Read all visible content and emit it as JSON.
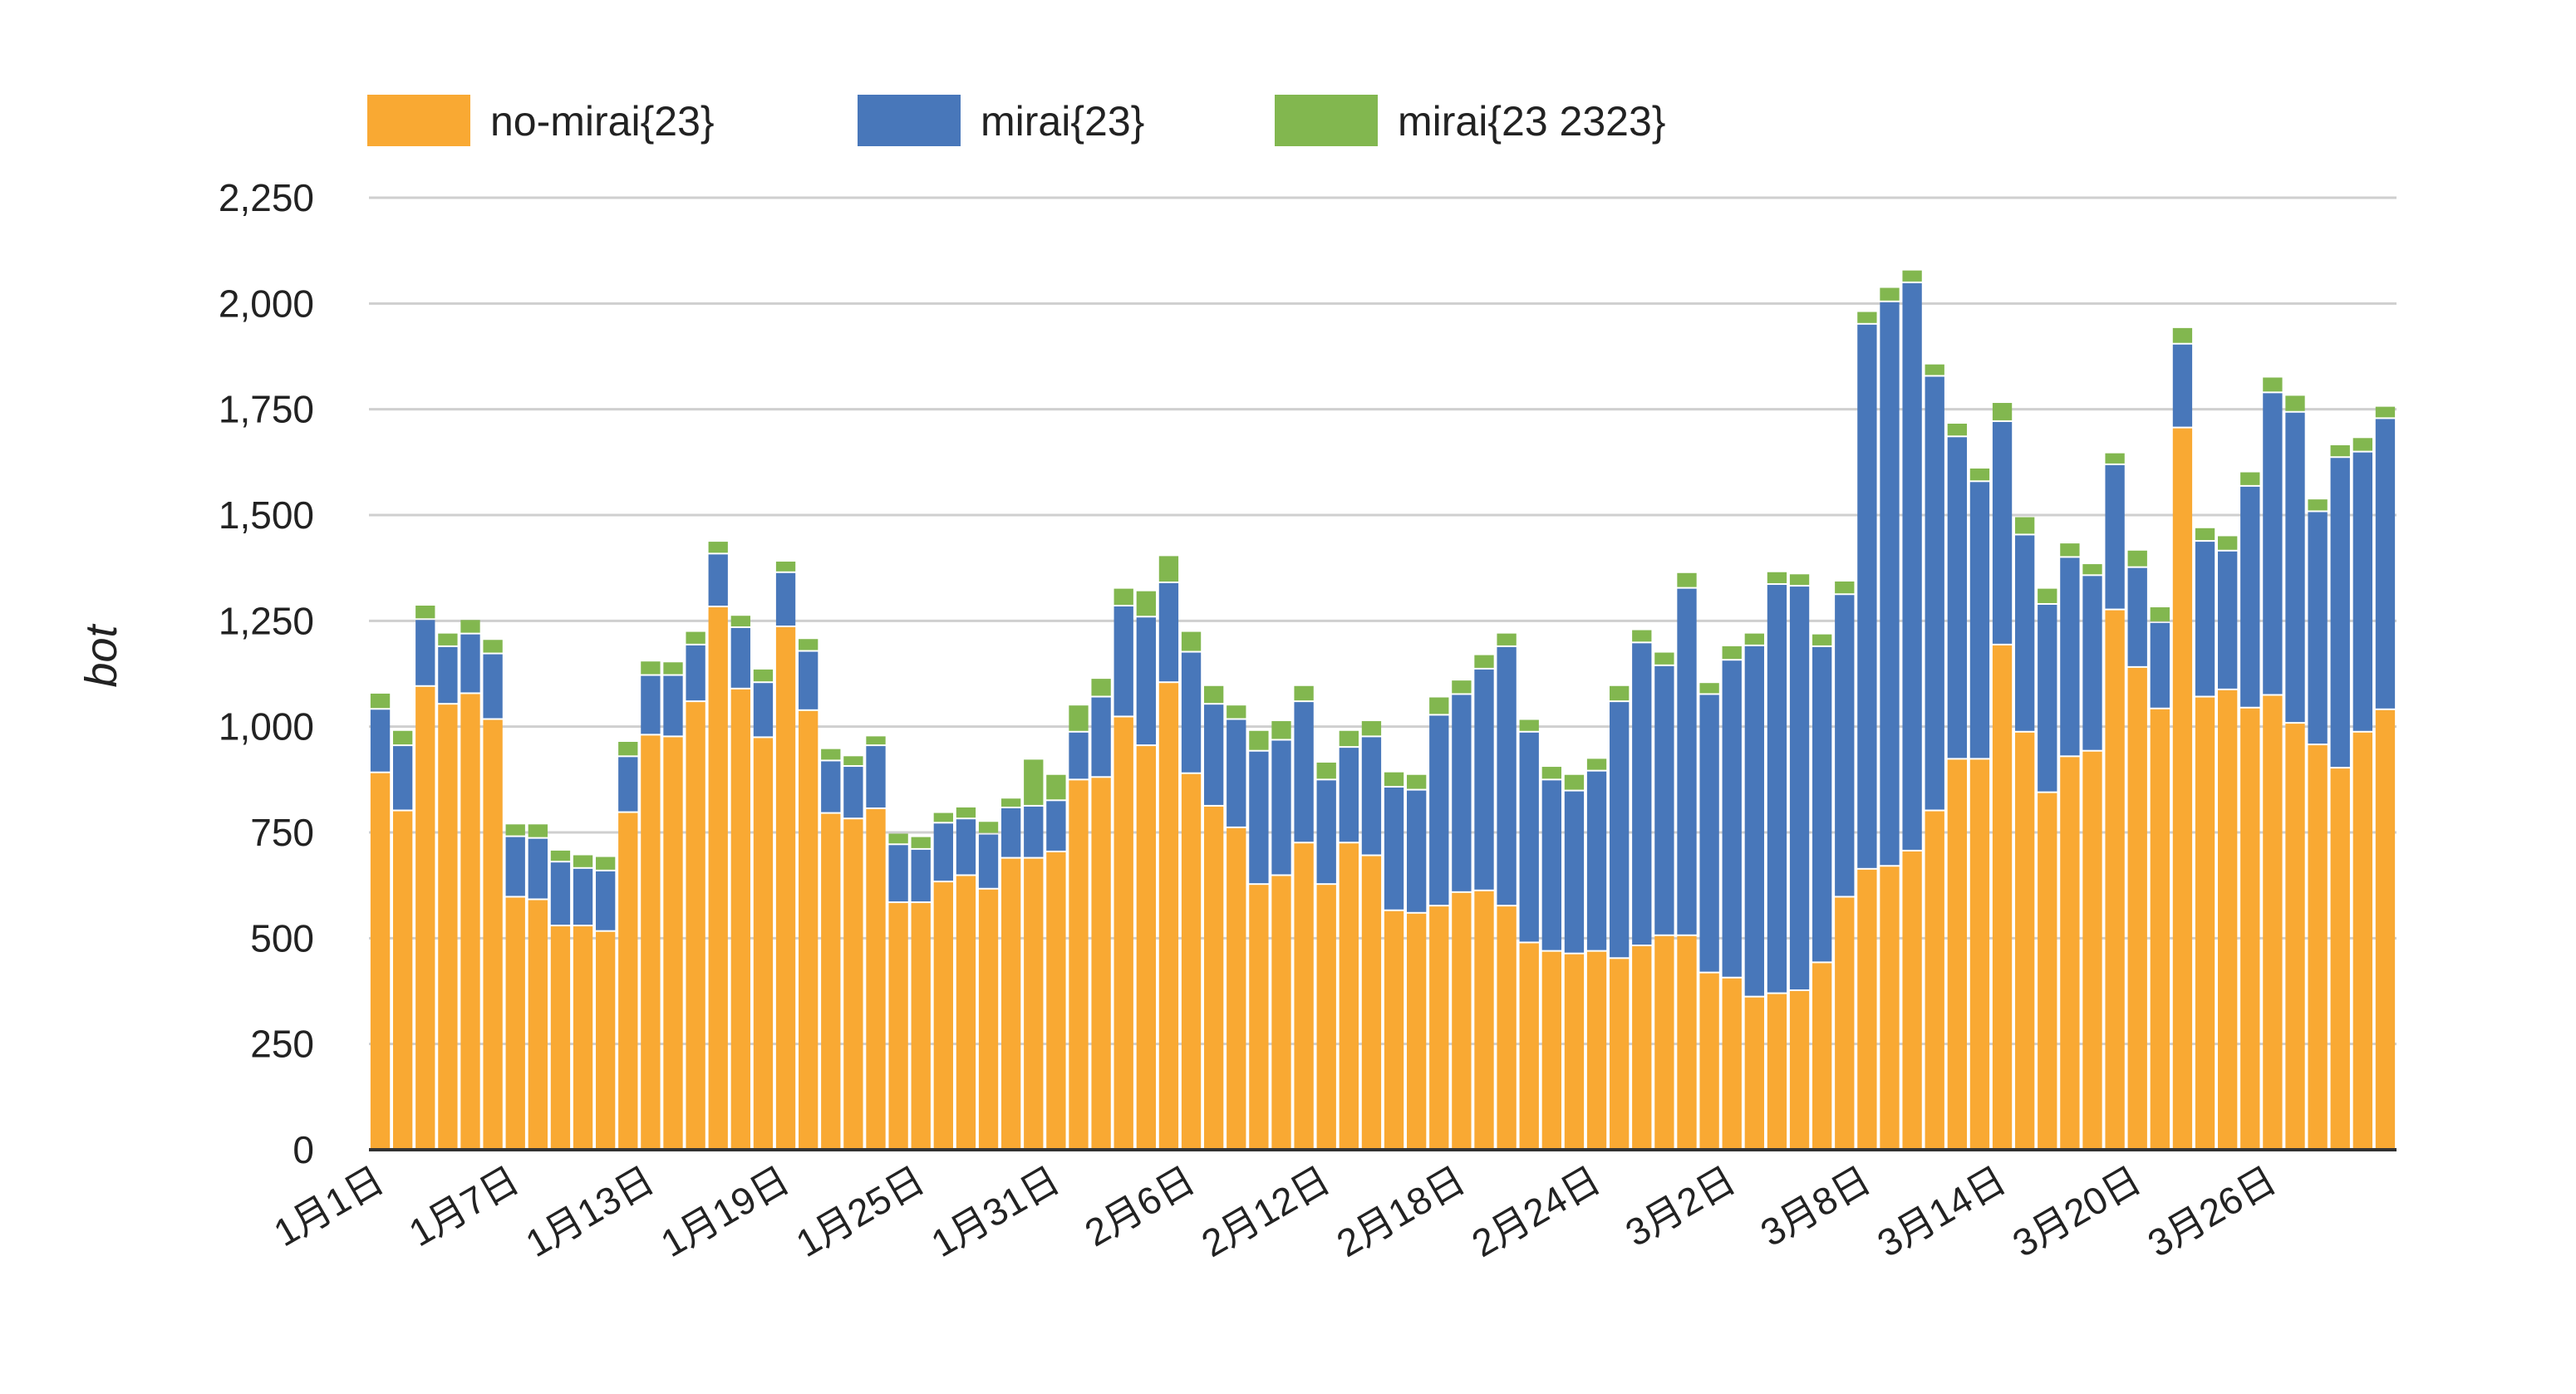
{
  "chart_data": {
    "type": "bar",
    "stacked": true,
    "title": "",
    "xlabel": "",
    "ylabel": "bot",
    "ylim": [
      0,
      2250
    ],
    "yticks": [
      0,
      250,
      500,
      750,
      1000,
      1250,
      1500,
      1750,
      2000,
      2250
    ],
    "ytick_labels": [
      "0",
      "250",
      "500",
      "750",
      "1,000",
      "1,250",
      "1,500",
      "1,750",
      "2,000",
      "2,250"
    ],
    "grid": true,
    "legend_position": "top-left",
    "categories": [
      "1月1日",
      "1月2日",
      "1月3日",
      "1月4日",
      "1月5日",
      "1月6日",
      "1月7日",
      "1月8日",
      "1月9日",
      "1月10日",
      "1月11日",
      "1月12日",
      "1月13日",
      "1月14日",
      "1月15日",
      "1月16日",
      "1月17日",
      "1月18日",
      "1月19日",
      "1月20日",
      "1月21日",
      "1月22日",
      "1月23日",
      "1月24日",
      "1月25日",
      "1月26日",
      "1月27日",
      "1月28日",
      "1月29日",
      "1月30日",
      "1月31日",
      "2月1日",
      "2月2日",
      "2月3日",
      "2月4日",
      "2月5日",
      "2月6日",
      "2月7日",
      "2月8日",
      "2月9日",
      "2月10日",
      "2月11日",
      "2月12日",
      "2月13日",
      "2月14日",
      "2月15日",
      "2月16日",
      "2月17日",
      "2月18日",
      "2月19日",
      "2月20日",
      "2月21日",
      "2月22日",
      "2月23日",
      "2月24日",
      "2月25日",
      "2月26日",
      "2月27日",
      "2月28日",
      "3月1日",
      "3月2日",
      "3月3日",
      "3月4日",
      "3月5日",
      "3月6日",
      "3月7日",
      "3月8日",
      "3月9日",
      "3月10日",
      "3月11日",
      "3月12日",
      "3月13日",
      "3月14日",
      "3月15日",
      "3月16日",
      "3月17日",
      "3月18日",
      "3月19日",
      "3月20日",
      "3月21日",
      "3月22日",
      "3月23日",
      "3月24日",
      "3月25日",
      "3月26日",
      "3月27日",
      "3月28日",
      "3月29日",
      "3月30日",
      "3月31日"
    ],
    "xtick_labels": [
      "1月1日",
      "1月7日",
      "1月13日",
      "1月19日",
      "1月25日",
      "1月31日",
      "2月6日",
      "2月12日",
      "2月18日",
      "2月24日",
      "3月2日",
      "3月8日",
      "3月14日",
      "3月20日",
      "3月26日"
    ],
    "series": [
      {
        "name": "no-mirai{23}",
        "color": "#F9A933",
        "values": [
          890,
          800,
          1094,
          1052,
          1077,
          1016,
          596,
          590,
          528,
          528,
          515,
          796,
          979,
          975,
          1058,
          1282,
          1088,
          973,
          1235,
          1037,
          794,
          781,
          805,
          583,
          583,
          632,
          647,
          615,
          688,
          688,
          703,
          873,
          879,
          1022,
          954,
          1103,
          888,
          811,
          760,
          626,
          647,
          724,
          626,
          724,
          694,
          564,
          558,
          575,
          607,
          611,
          575,
          488,
          468,
          462,
          468,
          451,
          481,
          505,
          505,
          417,
          405,
          360,
          368,
          375,
          441,
          596,
          662,
          669,
          705,
          800,
          922,
          922,
          1192,
          986,
          843,
          928,
          941,
          1275,
          1139,
          1041,
          1705,
          1069,
          1086,
          1043,
          1073,
          1007,
          956,
          901,
          986,
          1039
        ]
      },
      {
        "name": "mirai{23}",
        "color": "#4877BA",
        "values": [
          150,
          154,
          158,
          136,
          141,
          155,
          143,
          145,
          151,
          136,
          143,
          132,
          141,
          145,
          134,
          125,
          145,
          130,
          128,
          140,
          124,
          124,
          149,
          137,
          126,
          139,
          134,
          130,
          119,
          123,
          121,
          113,
          190,
          262,
          304,
          236,
          287,
          241,
          256,
          315,
          320,
          334,
          247,
          226,
          281,
          292,
          291,
          451,
          468,
          524,
          613,
          498,
          405,
          385,
          426,
          607,
          716,
          638,
          821,
          658,
          751,
          830,
          967,
          956,
          747,
          715,
          1288,
          1334,
          1343,
          1027,
          762,
          656,
          528,
          466,
          445,
          471,
          415,
          343,
          236,
          204,
          198,
          368,
          328,
          524,
          715,
          735,
          551,
          734,
          662,
          688
        ]
      },
      {
        "name": "mirai{23 2323}",
        "color": "#82B74F",
        "values": [
          38,
          36,
          34,
          32,
          34,
          34,
          30,
          34,
          28,
          32,
          34,
          36,
          34,
          32,
          32,
          30,
          29,
          32,
          27,
          30,
          29,
          25,
          23,
          27,
          30,
          25,
          28,
          30,
          23,
          111,
          62,
          64,
          44,
          42,
          62,
          64,
          49,
          44,
          34,
          49,
          46,
          38,
          42,
          40,
          38,
          36,
          37,
          43,
          34,
          34,
          32,
          30,
          32,
          39,
          30,
          38,
          31,
          32,
          37,
          28,
          34,
          30,
          30,
          29,
          30,
          32,
          30,
          34,
          30,
          29,
          32,
          32,
          45,
          43,
          38,
          34,
          28,
          28,
          41,
          37,
          39,
          32,
          36,
          34,
          37,
          40,
          30,
          30,
          34,
          29
        ]
      }
    ]
  }
}
